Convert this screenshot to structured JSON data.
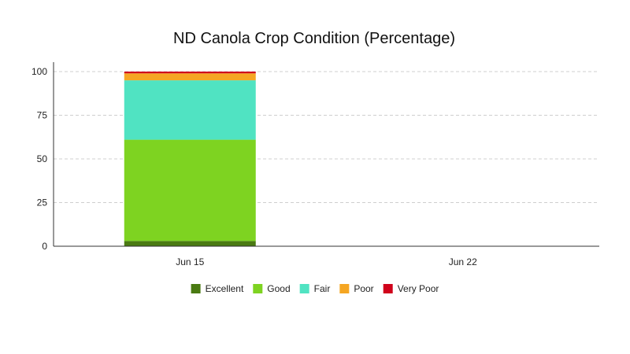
{
  "chart_data": {
    "type": "bar",
    "stacked": true,
    "title": "ND Canola Crop Condition (Percentage)",
    "xlabel": "",
    "ylabel": "",
    "categories": [
      "Jun 15",
      "Jun 22"
    ],
    "ylim": [
      0,
      100
    ],
    "yticks": [
      0,
      25,
      50,
      75,
      100
    ],
    "grid": true,
    "legend_position": "bottom",
    "series": [
      {
        "name": "Excellent",
        "color": "#4a7a12",
        "values": [
          3,
          null
        ]
      },
      {
        "name": "Good",
        "color": "#7ed321",
        "values": [
          58,
          null
        ]
      },
      {
        "name": "Fair",
        "color": "#50e3c2",
        "values": [
          34,
          null
        ]
      },
      {
        "name": "Poor",
        "color": "#f5a623",
        "values": [
          4,
          null
        ]
      },
      {
        "name": "Very Poor",
        "color": "#d0021b",
        "values": [
          1,
          null
        ]
      }
    ]
  }
}
